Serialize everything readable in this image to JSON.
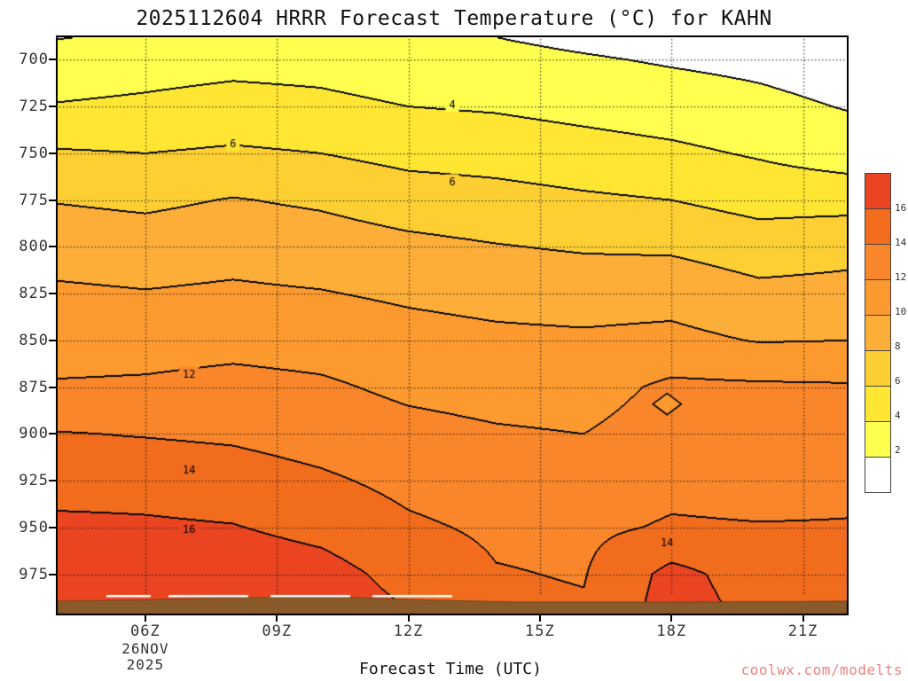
{
  "title": "2025112604 HRRR Forecast Temperature (°C) for KAHN",
  "watermark": {
    "text": "coolwx.com/modelts",
    "color": "#f08080"
  },
  "x_axis": {
    "title": "Forecast Time (UTC)",
    "ticks": [
      {
        "hour": 6,
        "label": "06Z"
      },
      {
        "hour": 9,
        "label": "09Z"
      },
      {
        "hour": 12,
        "label": "12Z"
      },
      {
        "hour": 15,
        "label": "15Z"
      },
      {
        "hour": 18,
        "label": "18Z"
      },
      {
        "hour": 21,
        "label": "21Z"
      }
    ],
    "date_line1": "26NOV",
    "date_line2": "2025"
  },
  "y_axis": {
    "tick_values": [
      700,
      725,
      750,
      775,
      800,
      825,
      850,
      875,
      900,
      925,
      950,
      975
    ]
  },
  "colorbar": {
    "tick_labels": [
      "16",
      "14",
      "12",
      "10",
      "8",
      "6",
      "4",
      "2"
    ],
    "position": "right"
  },
  "chart_data": {
    "type": "heatmap",
    "style": "filled-contour time-height cross-section",
    "title": "2025112604 HRRR Forecast Temperature (°C) for KAHN",
    "xlabel": "Forecast Time (UTC)",
    "grid": "dotted",
    "legend_position": "right",
    "time_range_utc": [
      4,
      22
    ],
    "pressure_range_hpa": [
      688,
      996
    ],
    "levels": [
      2,
      4,
      6,
      8,
      10,
      12,
      14,
      16
    ],
    "band_colors": [
      "#ffffff",
      "#ffff4f",
      "#ffe633",
      "#fecf33",
      "#fdae38",
      "#fc9a2f",
      "#f9862a",
      "#f16c1d",
      "#ea4420"
    ],
    "times_utc": [
      4,
      6,
      8,
      10,
      12,
      14,
      16,
      18,
      20,
      22
    ],
    "pressures_hpa": [
      688,
      700,
      725,
      750,
      775,
      800,
      825,
      850,
      875,
      900,
      925,
      950,
      975,
      996
    ],
    "temps_c": [
      [
        1.9,
        2.4,
        2.6,
        2.5,
        2.3,
        2.0,
        1.5,
        1.1,
        0.9,
        0.6
      ],
      [
        3.0,
        3.3,
        3.5,
        3.4,
        3.0,
        2.6,
        2.2,
        1.8,
        1.5,
        1.0
      ],
      [
        4.1,
        4.3,
        4.6,
        4.4,
        4.0,
        3.8,
        3.4,
        3.0,
        2.5,
        1.9
      ],
      [
        6.2,
        6.0,
        6.3,
        6.0,
        5.4,
        5.2,
        4.8,
        4.4,
        3.8,
        3.0
      ],
      [
        7.9,
        7.6,
        8.1,
        7.7,
        7.0,
        6.7,
        6.3,
        6.0,
        5.3,
        5.3
      ],
      [
        9.2,
        9.0,
        9.3,
        9.0,
        8.5,
        8.1,
        7.8,
        7.7,
        7.0,
        7.4
      ],
      [
        10.3,
        10.1,
        10.3,
        10.1,
        9.7,
        9.4,
        9.2,
        9.3,
        8.5,
        8.6
      ],
      [
        11.1,
        11.2,
        11.4,
        11.2,
        10.7,
        10.4,
        10.3,
        10.5,
        9.9,
        10.0
      ],
      [
        12.2,
        12.3,
        12.6,
        12.3,
        11.6,
        11.3,
        11.2,
        12.4,
        12.3,
        12.2
      ],
      [
        14.1,
        13.9,
        13.7,
        13.2,
        12.6,
        12.2,
        12.0,
        12.9,
        12.7,
        12.9
      ],
      [
        15.1,
        15.2,
        14.9,
        14.3,
        13.5,
        13.0,
        12.9,
        13.5,
        13.3,
        13.6
      ],
      [
        16.5,
        16.3,
        16.1,
        15.4,
        14.3,
        13.7,
        13.6,
        14.2,
        14.1,
        14.1
      ],
      [
        17.2,
        17.1,
        17.3,
        16.8,
        15.3,
        14.1,
        13.9,
        16.6,
        15.1,
        14.9
      ],
      [
        17.6,
        17.5,
        17.7,
        17.2,
        16.1,
        14.4,
        14.2,
        16.9,
        15.5,
        15.3
      ]
    ],
    "contour_labels": [
      {
        "text": "4",
        "t": 13.0,
        "p": 724
      },
      {
        "text": "6",
        "t": 8.0,
        "p": 745
      },
      {
        "text": "6",
        "t": 13.0,
        "p": 765
      },
      {
        "text": "12",
        "t": 7.0,
        "p": 868
      },
      {
        "text": "14",
        "t": 7.0,
        "p": 919
      },
      {
        "text": "16",
        "t": 7.0,
        "p": 951
      },
      {
        "text": "14",
        "t": 17.9,
        "p": 958
      }
    ],
    "closed_contour": {
      "t": 17.9,
      "p": 884,
      "fill_band_index": 5
    },
    "terrain": {
      "color": "#8a5a2b",
      "edge_color": "#6b4620",
      "white_surface_marks": true
    }
  }
}
